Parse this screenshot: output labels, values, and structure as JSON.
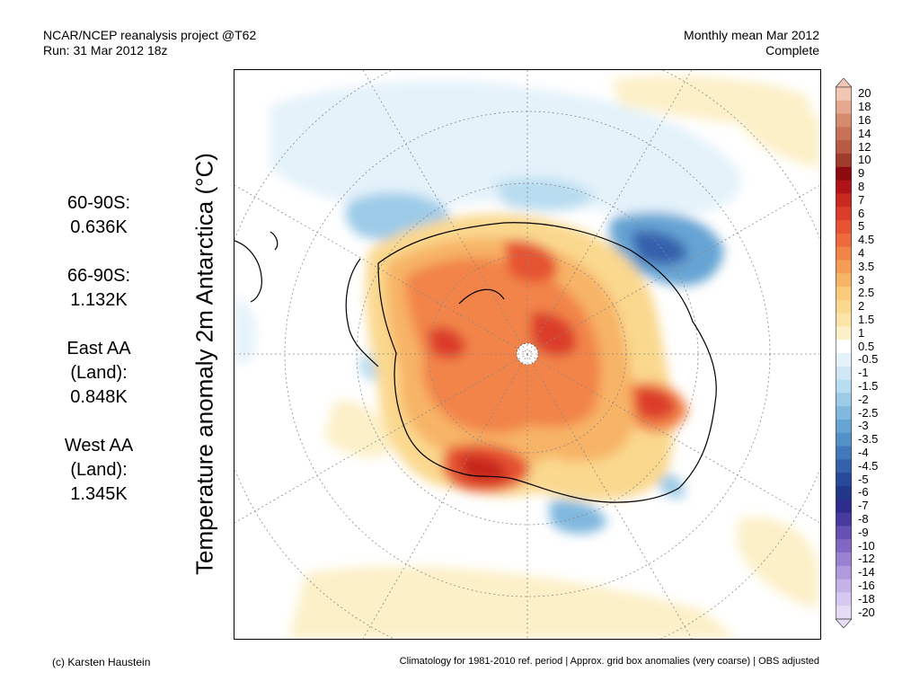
{
  "header": {
    "left_line1": "NCAR/NCEP reanalysis project @T62",
    "left_line2": "Run: 31 Mar 2012 18z",
    "right_line1": "Monthly mean Mar 2012",
    "right_line2": "Complete"
  },
  "ylabel": "Temperature anomaly 2m Antarctica (°C)",
  "stats": [
    {
      "label": "60-90S:",
      "value": "0.636K"
    },
    {
      "label": "66-90S:",
      "value": "1.132K"
    },
    {
      "label": "East AA",
      "label2": "(Land):",
      "value": "0.848K"
    },
    {
      "label": "West AA",
      "label2": "(Land):",
      "value": "1.345K"
    }
  ],
  "colorbar": {
    "labels": [
      "20",
      "18",
      "16",
      "14",
      "12",
      "10",
      "9",
      "8",
      "7",
      "6",
      "5",
      "4.5",
      "4",
      "3.5",
      "3",
      "2.5",
      "2",
      "1.5",
      "1",
      "0.5",
      "-0.5",
      "-1",
      "-1.5",
      "-2",
      "-2.5",
      "-3",
      "-3.5",
      "-4",
      "-4.5",
      "-5",
      "-6",
      "-7",
      "-8",
      "-9",
      "-10",
      "-12",
      "-14",
      "-16",
      "-18",
      "-20"
    ],
    "colors": [
      "#f2c8b4",
      "#e6a88e",
      "#d78b6e",
      "#c87158",
      "#b85a44",
      "#a03c2c",
      "#8c0a10",
      "#b01418",
      "#c8281e",
      "#dc3c2a",
      "#e65232",
      "#ee6a3c",
      "#f28448",
      "#f59c56",
      "#f7b466",
      "#f9ca7a",
      "#fad88e",
      "#fbe4a6",
      "#fcf0c8",
      "#ffffff",
      "#e4f2fa",
      "#d0e8f6",
      "#b8dcf0",
      "#9ccbe8",
      "#80b8de",
      "#66a4d4",
      "#5290c8",
      "#4278bc",
      "#3460ac",
      "#28489a",
      "#22368a",
      "#2e2c8c",
      "#483a9e",
      "#6650b4",
      "#8068c4",
      "#9a82d2",
      "#b09ade",
      "#c4b2e8",
      "#d6c8f0",
      "#e6dcf6"
    ]
  },
  "footer": {
    "left": "(c) Karsten Haustein",
    "right": "Climatology for 1981-2010 ref. period | Approx. grid box anomalies (very coarse) | OBS adjusted"
  }
}
